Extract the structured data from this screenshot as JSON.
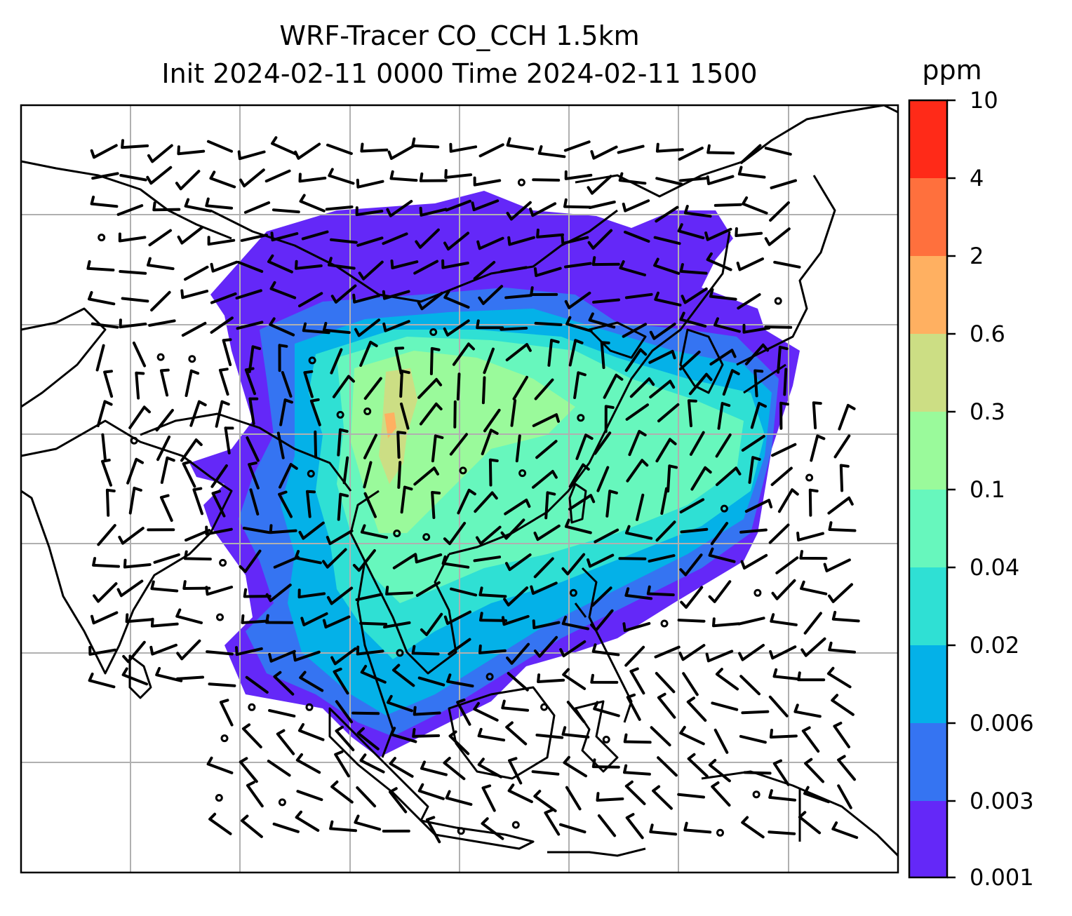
{
  "title": {
    "line1": "WRF-Tracer CO_CCH 1.5km",
    "line2": "Init 2024-02-11 0000 Time 2024-02-11 1500"
  },
  "colorbar": {
    "unit": "ppm",
    "levels": [
      "0.001",
      "0.003",
      "0.006",
      "0.02",
      "0.04",
      "0.1",
      "0.3",
      "0.6",
      "2",
      "4",
      "10"
    ],
    "colors": [
      "#6428f8",
      "#3574f2",
      "#04b1e8",
      "#2fe0d4",
      "#67f7bd",
      "#9afa9b",
      "#ccde84",
      "#ffb061",
      "#ff703d",
      "#ff2a18"
    ]
  },
  "chart_data": {
    "type": "heatmap",
    "title": "WRF-Tracer CO_CCH 1.5km",
    "subtitle": "Init 2024-02-11 0000 Time 2024-02-11 1500",
    "colorbar_label": "ppm",
    "contour_levels": [
      0.001,
      0.003,
      0.006,
      0.02,
      0.04,
      0.1,
      0.3,
      0.6,
      2,
      4,
      10
    ],
    "grid": true,
    "overlays": [
      "coastlines",
      "country borders",
      "wind barbs"
    ]
  }
}
